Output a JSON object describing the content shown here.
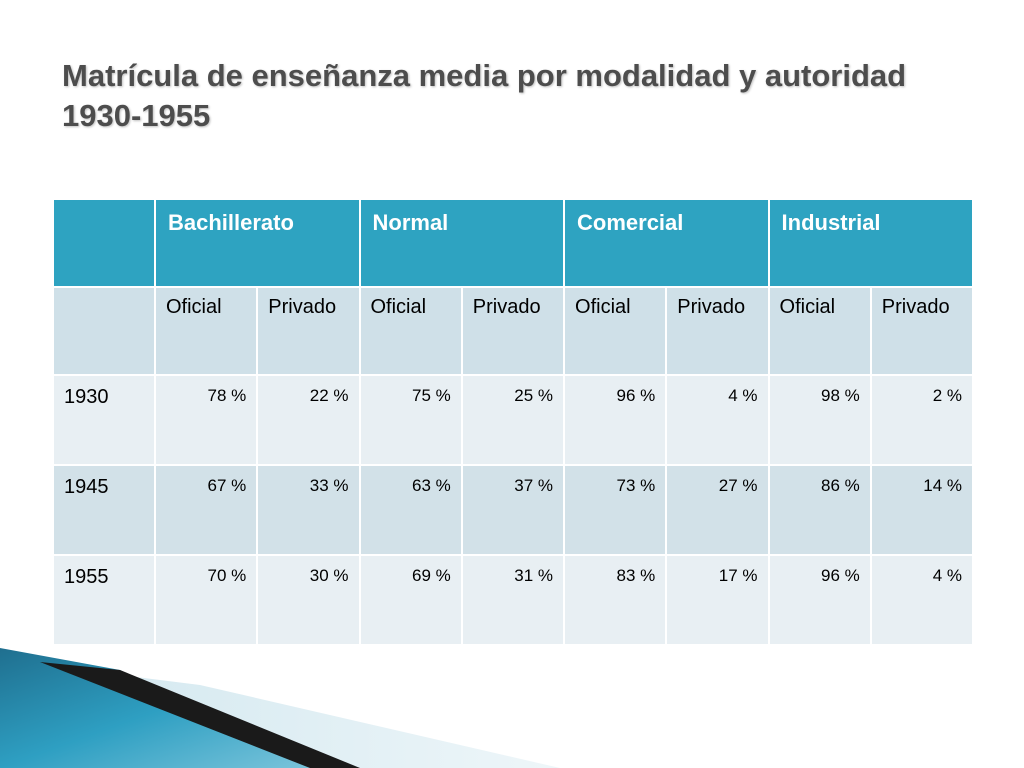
{
  "title": "Matrícula de enseñanza media por modalidad y autoridad 1930-1955",
  "table": {
    "categories": [
      "Bachillerato",
      "Normal",
      "Comercial",
      "Industrial"
    ],
    "subheaders": [
      "Oficial",
      "Privado",
      "Oficial",
      "Privado",
      "Oficial",
      "Privado",
      "Oficial",
      "Privado"
    ],
    "rows": [
      {
        "year": "1930",
        "values": [
          "78 %",
          "22 %",
          "75 %",
          "25 %",
          "96 %",
          "4 %",
          "98 %",
          "2 %"
        ]
      },
      {
        "year": "1945",
        "values": [
          "67 %",
          "33 %",
          "63 %",
          "37 %",
          "73 %",
          "27 %",
          "86 %",
          "14 %"
        ]
      },
      {
        "year": "1955",
        "values": [
          "70 %",
          "30 %",
          "69 %",
          "31 %",
          "83 %",
          "17 %",
          "96 %",
          "4 %"
        ]
      }
    ]
  },
  "colors": {
    "header": "#2ea3c1",
    "subheader": "#cfe0e8",
    "row_light": "#e8eff3",
    "row_mid": "#d2e1e8",
    "title": "#4d4d4d"
  }
}
